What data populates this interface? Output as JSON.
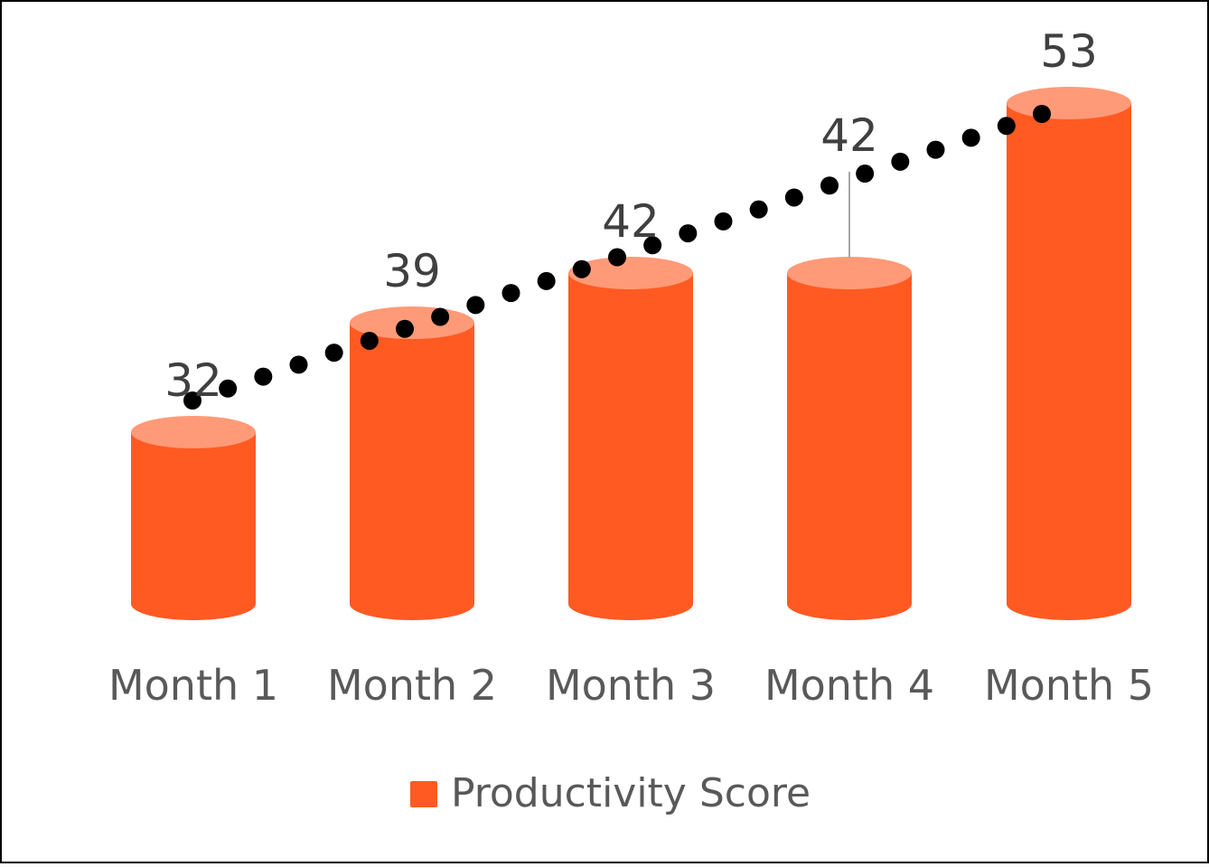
{
  "chart_data": {
    "type": "bar",
    "style": "3d-cylinder",
    "title": "",
    "categories": [
      "Month 1",
      "Month 2",
      "Month 3",
      "Month 4",
      "Month 5"
    ],
    "series": [
      {
        "name": "Productivity Score",
        "values": [
          32,
          39,
          42,
          42,
          53
        ],
        "color": "#FF5A22",
        "top_color": "#FF9A78"
      }
    ],
    "data_labels": [
      "32",
      "39",
      "42",
      "42",
      "53"
    ],
    "trendline": {
      "type": "linear",
      "style": "dotted",
      "color": "#000000"
    },
    "xlabel": "",
    "ylabel": "",
    "grid": false,
    "legend": {
      "position": "bottom",
      "entries": [
        "Productivity Score"
      ]
    }
  }
}
